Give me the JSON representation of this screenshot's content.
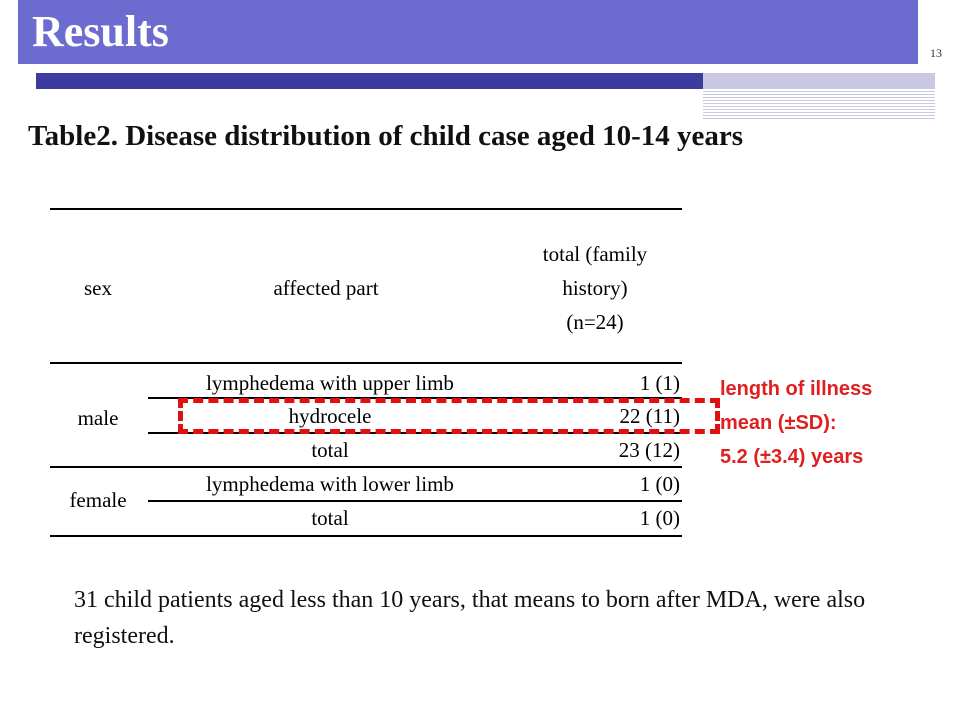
{
  "slide": {
    "title": "Results",
    "page_number": "13"
  },
  "table": {
    "caption": "Table2. Disease distribution of child case aged 10-14 years",
    "headers": {
      "sex": "sex",
      "affected_part": "affected part",
      "total_line1": "total (family",
      "total_line2": "history)",
      "total_line3": "(n=24)"
    },
    "male": {
      "label": "male",
      "rows": [
        {
          "part": "lymphedema with upper limb",
          "total": "1 (1)"
        },
        {
          "part": "hydrocele",
          "total": "22 (11)"
        },
        {
          "part": "total",
          "total": "23 (12)"
        }
      ]
    },
    "female": {
      "label": "female",
      "rows": [
        {
          "part": "lymphedema with lower limb",
          "total": "1 (0)"
        },
        {
          "part": "total",
          "total": "1 (0)"
        }
      ]
    }
  },
  "side_note": {
    "line1": "length of illness",
    "line2": "mean (±SD):",
    "line3": "5.2 (±3.4) years",
    "color": "#e02020"
  },
  "footnote": "31 child patients aged less than 10 years, that means to born after MDA, were also registered.",
  "colors": {
    "title_bar": "#6b6bd0",
    "rule_dark": "#3c3ca0",
    "highlight": "#e01010"
  }
}
